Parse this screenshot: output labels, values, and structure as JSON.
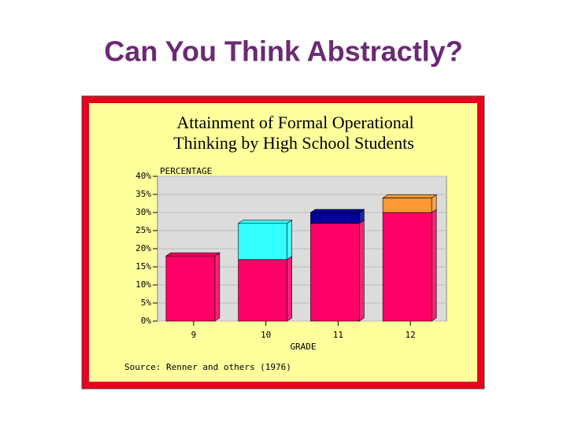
{
  "page_title": "Can You Think Abstractly?",
  "chart_data": {
    "type": "stacked-bar-3d",
    "title": [
      "Attainment of Formal Operational",
      "Thinking by High School Students"
    ],
    "y_label": "PERCENTAGE",
    "x_label": "GRADE",
    "source": "Source: Renner and others (1976)",
    "categories": [
      "9",
      "10",
      "11",
      "12"
    ],
    "series": [
      {
        "color": "#ff0066",
        "values": [
          18,
          17,
          27,
          30
        ]
      },
      {
        "colors": [
          null,
          "#33ffff",
          "#000099",
          "#ff9933"
        ],
        "values": [
          null,
          10,
          3,
          4
        ]
      }
    ],
    "ylim": [
      0,
      40
    ],
    "yticks": [
      {
        "value": 0,
        "label": "0%"
      },
      {
        "value": 5,
        "label": "5%"
      },
      {
        "value": 10,
        "label": "10%"
      },
      {
        "value": 15,
        "label": "15%"
      },
      {
        "value": 20,
        "label": "20%"
      },
      {
        "value": 25,
        "label": "25%"
      },
      {
        "value": 30,
        "label": "30%"
      },
      {
        "value": 35,
        "label": "35%"
      },
      {
        "value": 40,
        "label": "40%"
      }
    ]
  }
}
